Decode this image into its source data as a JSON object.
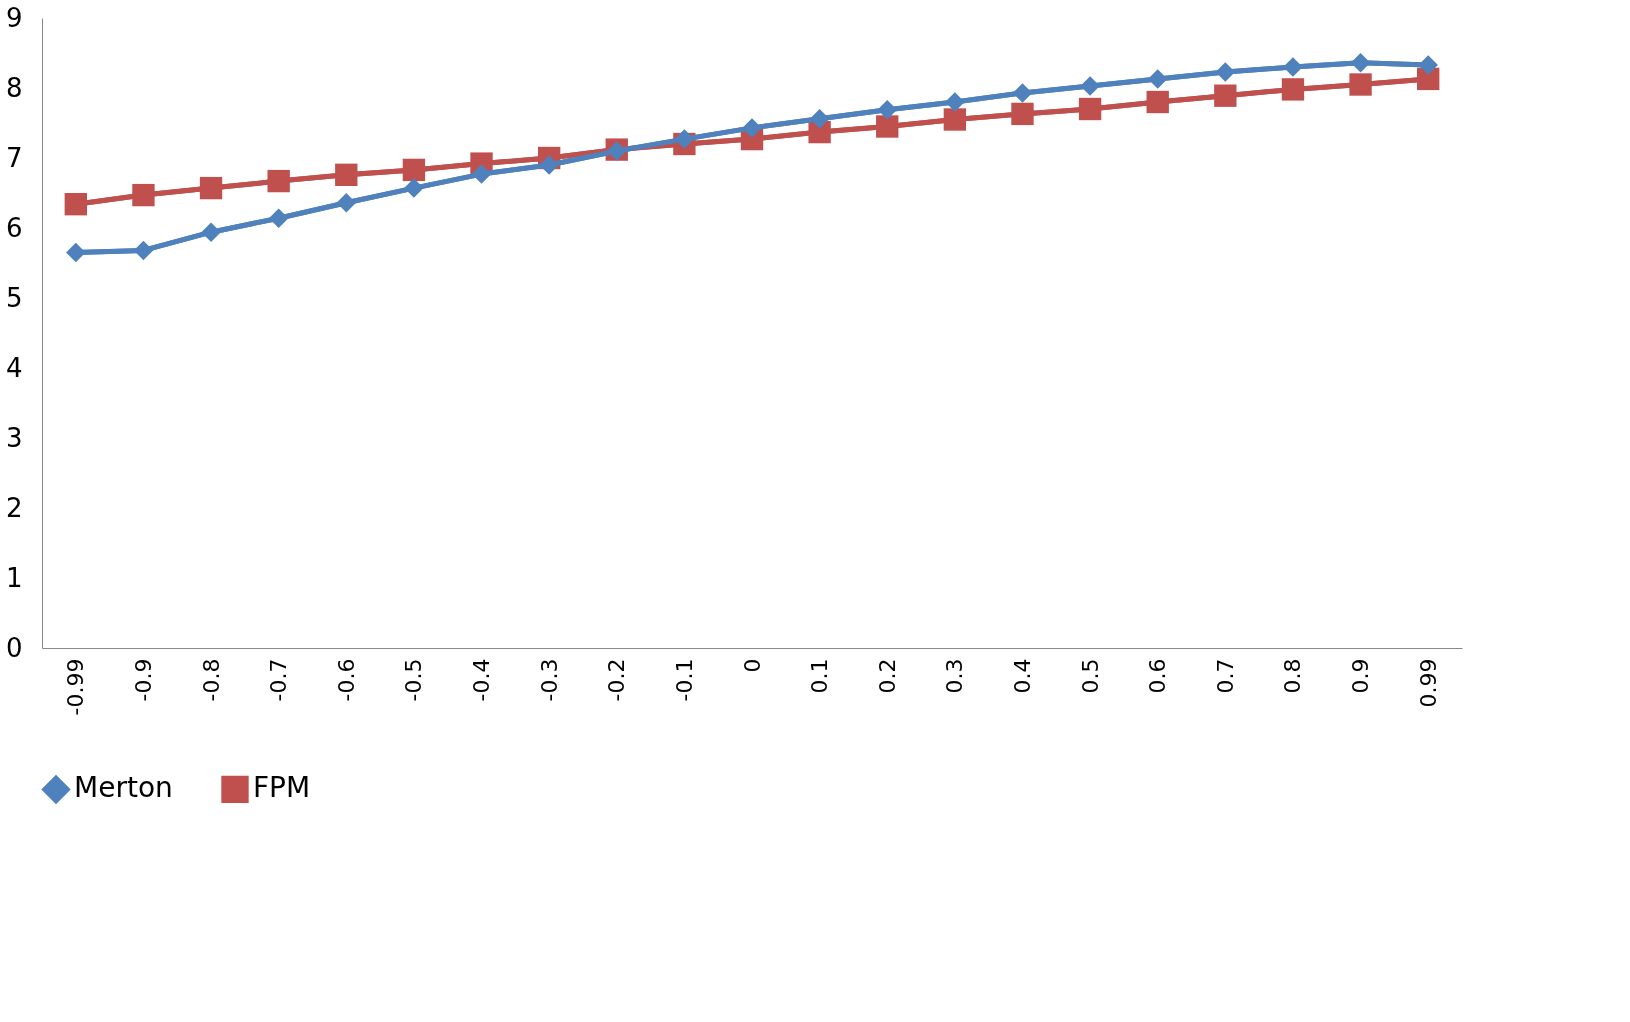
{
  "chart_data": {
    "type": "line",
    "categories": [
      "-0.99",
      "-0.9",
      "-0.8",
      "-0.7",
      "-0.6",
      "-0.5",
      "-0.4",
      "-0.3",
      "-0.2",
      "-0.1",
      "0",
      "0.1",
      "0.2",
      "0.3",
      "0.4",
      "0.5",
      "0.6",
      "0.7",
      "0.8",
      "0.9",
      "0.99"
    ],
    "series": [
      {
        "name": "Merton",
        "color": "#4f81bd",
        "marker": "diamond",
        "values": [
          5.65,
          5.68,
          5.94,
          6.14,
          6.36,
          6.57,
          6.77,
          6.9,
          7.1,
          7.27,
          7.43,
          7.56,
          7.69,
          7.8,
          7.93,
          8.03,
          8.13,
          8.23,
          8.3,
          8.36,
          8.33
        ]
      },
      {
        "name": "FPM",
        "color": "#c0504d",
        "marker": "square",
        "values": [
          6.34,
          6.47,
          6.57,
          6.67,
          6.76,
          6.83,
          6.92,
          7.0,
          7.12,
          7.2,
          7.27,
          7.37,
          7.45,
          7.55,
          7.63,
          7.7,
          7.8,
          7.89,
          7.98,
          8.05,
          8.13
        ]
      }
    ],
    "ylim": [
      0,
      9
    ],
    "yticks": [
      0,
      1,
      2,
      3,
      4,
      5,
      6,
      7,
      8,
      9
    ],
    "grid": false,
    "legend": "bottom",
    "line_style": "solid"
  }
}
